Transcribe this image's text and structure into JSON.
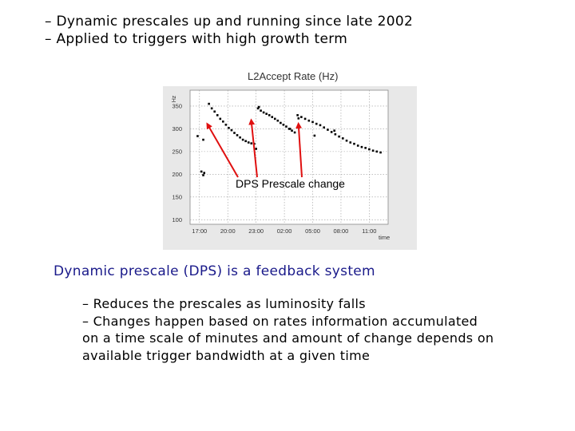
{
  "top_bullets": [
    "– Dynamic prescales up and running since late 2002",
    "– Applied to triggers with high growth term"
  ],
  "annotation": "DPS Prescale change",
  "chart_data": {
    "type": "scatter",
    "title": "L2Accept Rate (Hz)",
    "ylabel": "Hz",
    "xlabel": "time",
    "y_ticks": [
      "350",
      "300",
      "250",
      "200",
      "150",
      "100"
    ],
    "y_tick_values": [
      350,
      300,
      250,
      200,
      150,
      100
    ],
    "x_ticks": [
      "17:00",
      "20:00",
      "23:00",
      "02:00",
      "05:00",
      "08:00",
      "11:00"
    ],
    "x_tick_values": [
      0,
      3,
      6,
      9,
      12,
      15,
      18
    ],
    "xlim": [
      -1,
      20
    ],
    "ylim": [
      90,
      385
    ],
    "grid": true,
    "series": [
      {
        "points": [
          [
            1.0,
            355
          ],
          [
            1.3,
            345
          ],
          [
            1.6,
            338
          ],
          [
            1.9,
            330
          ],
          [
            2.2,
            322
          ],
          [
            2.5,
            316
          ],
          [
            2.8,
            309
          ],
          [
            3.1,
            302
          ],
          [
            3.4,
            297
          ],
          [
            3.7,
            291
          ],
          [
            4.0,
            286
          ],
          [
            4.3,
            281
          ],
          [
            4.6,
            276
          ],
          [
            4.9,
            273
          ],
          [
            5.2,
            270
          ],
          [
            5.5,
            268
          ],
          [
            5.8,
            267
          ]
        ]
      },
      {
        "points": [
          [
            6.2,
            345
          ],
          [
            6.5,
            340
          ],
          [
            6.8,
            336
          ],
          [
            7.1,
            333
          ],
          [
            7.4,
            330
          ],
          [
            7.7,
            326
          ],
          [
            8.0,
            322
          ],
          [
            8.3,
            318
          ],
          [
            8.6,
            313
          ],
          [
            8.9,
            309
          ],
          [
            9.2,
            305
          ],
          [
            9.5,
            300
          ],
          [
            9.8,
            296
          ],
          [
            10.1,
            292
          ]
        ]
      },
      {
        "points": [
          [
            10.4,
            330
          ],
          [
            10.8,
            326
          ],
          [
            11.2,
            322
          ],
          [
            11.6,
            318
          ],
          [
            12.0,
            315
          ],
          [
            12.4,
            311
          ],
          [
            12.8,
            308
          ],
          [
            13.2,
            303
          ],
          [
            13.6,
            298
          ],
          [
            14.0,
            293
          ],
          [
            14.4,
            288
          ],
          [
            14.8,
            283
          ],
          [
            15.2,
            279
          ],
          [
            15.6,
            274
          ],
          [
            16.0,
            270
          ],
          [
            16.4,
            267
          ],
          [
            16.8,
            263
          ],
          [
            17.2,
            260
          ],
          [
            17.6,
            258
          ],
          [
            18.0,
            255
          ],
          [
            18.4,
            252
          ],
          [
            18.8,
            250
          ],
          [
            19.2,
            248
          ]
        ]
      },
      {
        "points": [
          [
            -0.2,
            284
          ],
          [
            0.4,
            276
          ],
          [
            0.2,
            206
          ],
          [
            0.5,
            203
          ],
          [
            0.4,
            198
          ],
          [
            6.0,
            256
          ],
          [
            9.6,
            300
          ],
          [
            12.2,
            285
          ],
          [
            14.3,
            296
          ],
          [
            6.3,
            348
          ],
          [
            10.5,
            323
          ]
        ]
      }
    ],
    "annotation_targets": [
      [
        0.9,
        322
      ],
      [
        5.5,
        330
      ],
      [
        10.5,
        322
      ]
    ]
  },
  "section_heading": "Dynamic prescale (DPS) is a feedback system",
  "bottom_bullets": [
    "– Reduces the prescales as luminosity falls",
    "– Changes happen based on rates information accumulated",
    "on a time scale of minutes and amount of change depends on",
    "available trigger bandwidth at a given time"
  ],
  "colors": {
    "arrow": "#e01010",
    "points": "#000000",
    "plot_bg": "#ffffff",
    "frame_bg": "#e8e8e8",
    "heading": "#1a1a8a"
  }
}
